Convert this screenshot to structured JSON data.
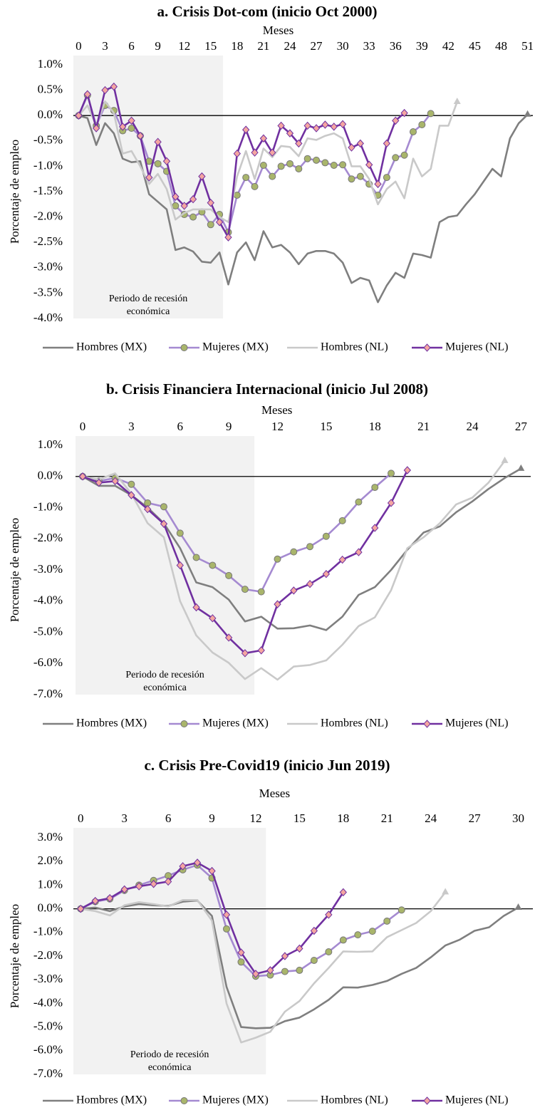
{
  "chart_data": [
    {
      "type": "line",
      "title": "a. Crisis Dot-com (inicio Oct 2000)",
      "x_label": "Meses",
      "y_label": "Porcentaje de empleo",
      "x": [
        0,
        1,
        2,
        3,
        4,
        5,
        6,
        7,
        8,
        9,
        10,
        11,
        12,
        13,
        14,
        15,
        16,
        17,
        18,
        19,
        20,
        21,
        22,
        23,
        24,
        25,
        26,
        27,
        28,
        29,
        30,
        31,
        32,
        33,
        34,
        35,
        36,
        37,
        38,
        39,
        40,
        41,
        42,
        43,
        44,
        45,
        46,
        47,
        48,
        49,
        50,
        51
      ],
      "xlim": [
        -0.6,
        51.6
      ],
      "xticks": [
        0,
        3,
        6,
        9,
        12,
        15,
        18,
        21,
        24,
        27,
        30,
        33,
        36,
        39,
        42,
        45,
        48,
        51
      ],
      "ylim": [
        -4,
        1
      ],
      "yticks": [
        {
          "value": 1,
          "label": "1.0%"
        },
        {
          "value": 0.5,
          "label": "0.5%"
        },
        {
          "value": 0,
          "label": "0.0%"
        },
        {
          "value": -0.5,
          "label": "-0.5%"
        },
        {
          "value": -1,
          "label": "-1.0%"
        },
        {
          "value": -1.5,
          "label": "-1.5%"
        },
        {
          "value": -2,
          "label": "-2.0%"
        },
        {
          "value": -2.5,
          "label": "-2.5%"
        },
        {
          "value": -3,
          "label": "-3.0%"
        },
        {
          "value": -3.5,
          "label": "-3.5%"
        },
        {
          "value": -4,
          "label": "-4.0%"
        }
      ],
      "recession": {
        "xlim": [
          -0.6,
          16.4
        ],
        "label": [
          "Periodo de recesión",
          "económica"
        ]
      },
      "legend": "bottom",
      "series": [
        {
          "name": "Hombres (MX)",
          "color": "#7f7f7f",
          "marker": "triangle-end",
          "marker_color": "#7f7f7f",
          "values": [
            0,
            -0.05,
            -0.58,
            -0.15,
            -0.35,
            -0.85,
            -0.92,
            -0.9,
            -1.55,
            -1.7,
            -1.85,
            -2.65,
            -2.6,
            -2.68,
            -2.88,
            -2.9,
            -2.7,
            -3.33,
            -2.7,
            -2.5,
            -2.85,
            -2.28,
            -2.6,
            -2.55,
            -2.7,
            -2.93,
            -2.72,
            -2.67,
            -2.67,
            -2.72,
            -2.9,
            -3.3,
            -3.2,
            -3.25,
            -3.68,
            -3.35,
            -3.1,
            -3.2,
            -2.72,
            -2.75,
            -2.8,
            -2.1,
            -2.0,
            -1.97,
            -1.75,
            -1.55,
            -1.3,
            -1.05,
            -1.2,
            -0.45,
            -0.15,
            0.02
          ]
        },
        {
          "name": "Mujeres (MX)",
          "color": "#a58ad1",
          "marker": "circle",
          "marker_color": "#a9b56b",
          "values": [
            0,
            0.4,
            -0.2,
            0.2,
            0.1,
            -0.3,
            -0.25,
            -0.4,
            -0.9,
            -0.95,
            -1.1,
            -1.78,
            -1.95,
            -2.0,
            -1.9,
            -2.15,
            -1.95,
            -2.3,
            -1.57,
            -1.22,
            -1.4,
            -0.98,
            -1.2,
            -1.0,
            -0.95,
            -1.05,
            -0.85,
            -0.88,
            -0.93,
            -0.98,
            -0.97,
            -1.25,
            -1.2,
            -1.35,
            -1.57,
            -1.22,
            -0.83,
            -0.78,
            -0.32,
            -0.18,
            0.04,
            null,
            null,
            null,
            null,
            null,
            null,
            null,
            null,
            null,
            null,
            null
          ]
        },
        {
          "name": "Hombres (NL)",
          "color": "#c9c9c9",
          "marker": "triangle-end",
          "marker_color": "#c9c9c9",
          "values": [
            0,
            0.2,
            -0.2,
            0.28,
            0.05,
            -0.75,
            -0.7,
            -1.0,
            -1.35,
            -1.15,
            -1.45,
            -2.05,
            -1.92,
            -1.85,
            -1.85,
            -1.85,
            -2.0,
            -2.1,
            -1.2,
            -0.7,
            -1.25,
            -0.65,
            -0.82,
            -0.6,
            -0.62,
            -0.8,
            -0.45,
            -0.48,
            -0.4,
            -0.35,
            -0.45,
            -1.0,
            -1.0,
            -1.25,
            -1.75,
            -1.45,
            -1.3,
            -1.63,
            -0.85,
            -1.2,
            -1.05,
            -0.2,
            -0.2,
            0.27,
            null,
            null,
            null,
            null,
            null,
            null,
            null,
            null
          ]
        },
        {
          "name": "Mujeres (NL)",
          "color": "#7030a0",
          "marker": "diamond",
          "marker_color": "#f4a6a0",
          "values": [
            0,
            0.42,
            -0.25,
            0.5,
            0.57,
            -0.22,
            -0.1,
            -0.4,
            -1.22,
            -0.52,
            -0.9,
            -1.6,
            -1.78,
            -1.65,
            -1.2,
            -1.72,
            -2.1,
            -2.4,
            -0.75,
            -0.28,
            -0.73,
            -0.45,
            -0.73,
            -0.2,
            -0.35,
            -0.55,
            -0.2,
            -0.25,
            -0.18,
            -0.22,
            -0.17,
            -0.63,
            -0.55,
            -0.97,
            -1.35,
            -0.55,
            -0.1,
            0.05,
            null,
            null,
            null,
            null,
            null,
            null,
            null,
            null,
            null,
            null,
            null,
            null,
            null,
            null
          ]
        }
      ]
    },
    {
      "type": "line",
      "title": "b. Crisis Financiera Internacional (inicio Jul 2008)",
      "x_label": "Meses",
      "y_label": "Porcentaje de empleo",
      "x": [
        0,
        1,
        2,
        3,
        4,
        5,
        6,
        7,
        8,
        9,
        10,
        11,
        12,
        13,
        14,
        15,
        16,
        17,
        18,
        19,
        20,
        21,
        22,
        23,
        24,
        25,
        26,
        27
      ],
      "xlim": [
        -0.44,
        27.6
      ],
      "xticks": [
        0,
        3,
        6,
        9,
        12,
        15,
        18,
        21,
        24,
        27
      ],
      "ylim": [
        -7,
        1
      ],
      "yticks": [
        {
          "value": 1,
          "label": "1.0%"
        },
        {
          "value": 0,
          "label": "0.0%"
        },
        {
          "value": -1,
          "label": "-1.0%"
        },
        {
          "value": -2,
          "label": "-2.0%"
        },
        {
          "value": -3,
          "label": "-3.0%"
        },
        {
          "value": -4,
          "label": "-4.0%"
        },
        {
          "value": -5,
          "label": "-5.0%"
        },
        {
          "value": -6,
          "label": "-6.0%"
        },
        {
          "value": -7,
          "label": "-7.0%"
        }
      ],
      "recession": {
        "xlim": [
          -0.44,
          10.58
        ],
        "label": [
          "Periodo de recesión",
          "económica"
        ]
      },
      "legend": "bottom",
      "series": [
        {
          "name": "Hombres (MX)",
          "color": "#7f7f7f",
          "marker": "triangle-end",
          "marker_color": "#7f7f7f",
          "values": [
            0,
            -0.3,
            -0.3,
            -0.6,
            -1.0,
            -1.5,
            -2.3,
            -3.4,
            -3.55,
            -3.95,
            -4.65,
            -4.5,
            -4.88,
            -4.87,
            -4.78,
            -4.93,
            -4.5,
            -3.8,
            -3.55,
            -3.0,
            -2.35,
            -1.8,
            -1.6,
            -1.15,
            -0.8,
            -0.4,
            -0.05,
            0.25
          ]
        },
        {
          "name": "Mujeres (MX)",
          "color": "#a58ad1",
          "marker": "circle",
          "marker_color": "#a9b56b",
          "values": [
            0,
            -0.15,
            -0.05,
            -0.25,
            -0.85,
            -0.97,
            -1.82,
            -2.6,
            -2.85,
            -3.18,
            -3.62,
            -3.7,
            -2.65,
            -2.42,
            -2.25,
            -1.92,
            -1.42,
            -0.82,
            -0.35,
            0.1,
            null,
            null,
            null,
            null,
            null,
            null,
            null,
            null
          ]
        },
        {
          "name": "Hombres (NL)",
          "color": "#c9c9c9",
          "marker": "triangle-end",
          "marker_color": "#c9c9c9",
          "values": [
            0,
            -0.1,
            0.1,
            -0.55,
            -1.5,
            -1.95,
            -4.0,
            -5.1,
            -5.65,
            -5.98,
            -6.5,
            -6.15,
            -6.52,
            -6.1,
            -6.05,
            -5.9,
            -5.4,
            -4.8,
            -4.52,
            -3.65,
            -2.3,
            -1.95,
            -1.5,
            -0.9,
            -0.68,
            -0.2,
            0.5,
            null
          ]
        },
        {
          "name": "Mujeres (NL)",
          "color": "#7030a0",
          "marker": "diamond",
          "marker_color": "#f4a6a0",
          "values": [
            0,
            -0.2,
            -0.15,
            -0.6,
            -1.05,
            -1.52,
            -2.85,
            -4.2,
            -4.55,
            -5.17,
            -5.67,
            -5.58,
            -4.1,
            -3.66,
            -3.45,
            -3.13,
            -2.67,
            -2.43,
            -1.65,
            -0.85,
            0.2,
            null,
            null,
            null,
            null,
            null,
            null,
            null
          ]
        }
      ]
    },
    {
      "type": "line",
      "title": "c. Crisis Pre-Covid19 (inicio Jun 2019)",
      "x_label": "Meses",
      "y_label": "Porcentaje de empleo",
      "x": [
        0,
        1,
        2,
        3,
        4,
        5,
        6,
        7,
        8,
        9,
        10,
        11,
        12,
        13,
        14,
        15,
        16,
        17,
        18,
        19,
        20,
        21,
        22,
        23,
        24,
        25,
        26,
        27,
        28,
        29,
        30
      ],
      "xlim": [
        -0.5,
        31
      ],
      "xticks": [
        0,
        3,
        6,
        9,
        12,
        15,
        18,
        21,
        24,
        27,
        30
      ],
      "ylim": [
        -7,
        3
      ],
      "yticks": [
        {
          "value": 3,
          "label": "3.0%"
        },
        {
          "value": 2,
          "label": "2.0%"
        },
        {
          "value": 1,
          "label": "1.0%"
        },
        {
          "value": 0,
          "label": "0.0%"
        },
        {
          "value": -1,
          "label": "-1.0%"
        },
        {
          "value": -2,
          "label": "-2.0%"
        },
        {
          "value": -3,
          "label": "-3.0%"
        },
        {
          "value": -4,
          "label": "-4.0%"
        },
        {
          "value": -5,
          "label": "-5.0%"
        },
        {
          "value": -6,
          "label": "-6.0%"
        },
        {
          "value": -7,
          "label": "-7.0%"
        }
      ],
      "recession": {
        "xlim": [
          -0.5,
          12.7
        ],
        "label": [
          "Periodo de recesión",
          "económica"
        ]
      },
      "legend": "bottom",
      "series": [
        {
          "name": "Hombres (MX)",
          "color": "#7f7f7f",
          "marker": "triangle-end",
          "marker_color": "#7f7f7f",
          "values": [
            0,
            0.05,
            -0.1,
            0.1,
            0.2,
            0.15,
            0.12,
            0.3,
            0.35,
            -0.3,
            -3.3,
            -5.0,
            -5.05,
            -5.03,
            -4.75,
            -4.6,
            -4.25,
            -3.85,
            -3.32,
            -3.33,
            -3.22,
            -3.05,
            -2.75,
            -2.5,
            -2.05,
            -1.55,
            -1.3,
            -0.93,
            -0.78,
            -0.3,
            0.05
          ]
        },
        {
          "name": "Mujeres (MX)",
          "color": "#a58ad1",
          "marker": "circle",
          "marker_color": "#a9b56b",
          "values": [
            0,
            0.3,
            0.42,
            0.78,
            1.0,
            1.2,
            1.4,
            1.65,
            1.85,
            1.3,
            -0.85,
            -2.25,
            -2.85,
            -2.8,
            -2.65,
            -2.6,
            -2.18,
            -1.82,
            -1.32,
            -1.1,
            -0.95,
            -0.52,
            -0.05,
            null,
            null,
            null,
            null,
            null,
            null,
            null,
            null
          ]
        },
        {
          "name": "Hombres (NL)",
          "color": "#c9c9c9",
          "marker": "triangle-end",
          "marker_color": "#c9c9c9",
          "values": [
            0,
            -0.1,
            -0.28,
            0.15,
            0.28,
            0.2,
            0.1,
            0.37,
            0.37,
            -0.5,
            -4.0,
            -5.65,
            -5.45,
            -5.2,
            -4.35,
            -3.9,
            -3.15,
            -2.5,
            -1.8,
            -1.82,
            -1.8,
            -1.2,
            -0.9,
            -0.6,
            -0.1,
            0.7,
            null,
            null,
            null,
            null,
            null
          ]
        },
        {
          "name": "Mujeres (NL)",
          "color": "#7030a0",
          "marker": "diamond",
          "marker_color": "#f4a6a0",
          "values": [
            0,
            0.33,
            0.45,
            0.82,
            0.95,
            1.05,
            1.15,
            1.8,
            1.95,
            1.6,
            -0.25,
            -1.85,
            -2.75,
            -2.6,
            -2.0,
            -1.68,
            -0.93,
            -0.25,
            0.7,
            null,
            null,
            null,
            null,
            null,
            null,
            null,
            null,
            null,
            null,
            null,
            null
          ]
        }
      ]
    }
  ]
}
